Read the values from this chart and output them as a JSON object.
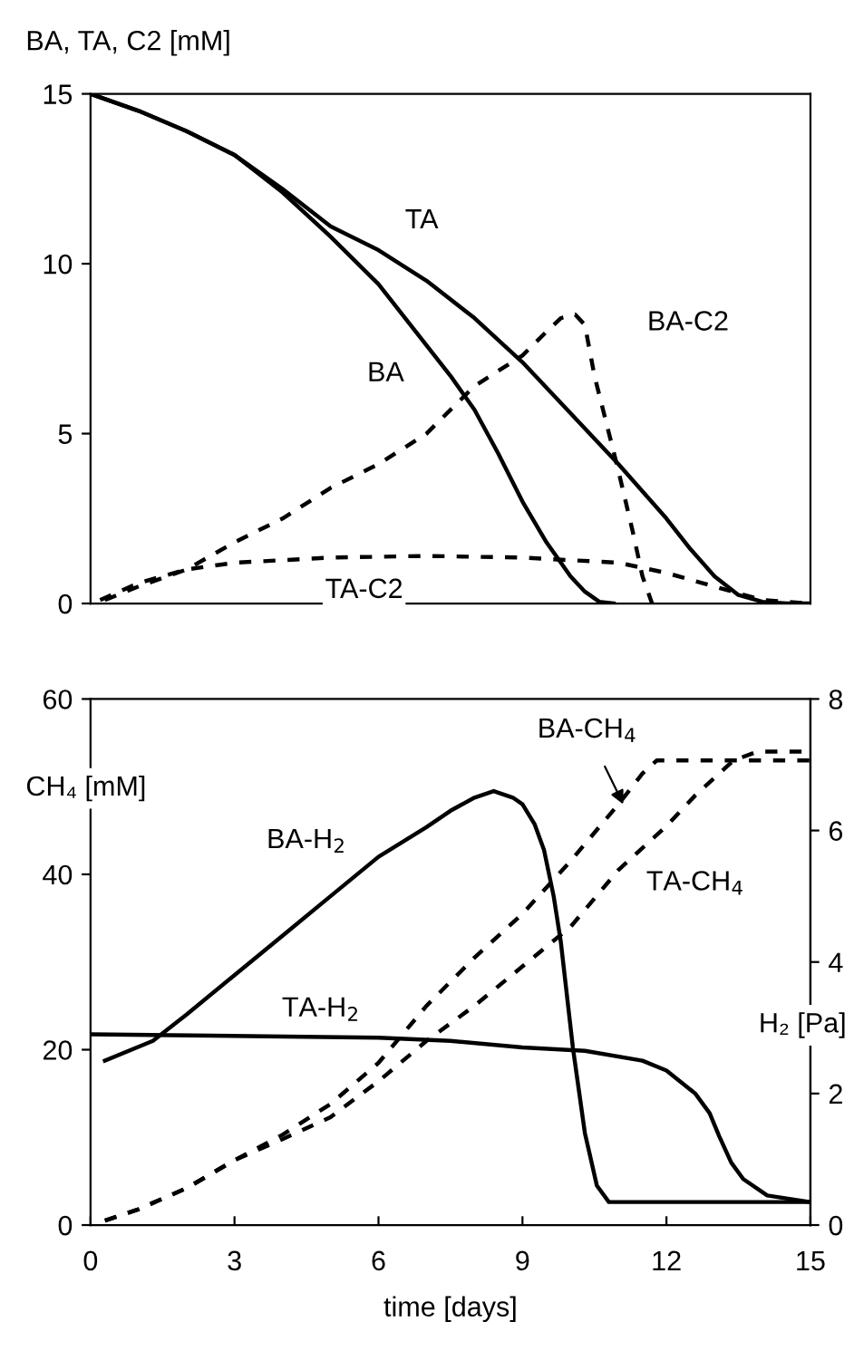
{
  "chart_data": [
    {
      "type": "line",
      "ylabel": "BA, TA, C2 [mM]",
      "xlim": [
        0,
        15
      ],
      "ylim": [
        0,
        15
      ],
      "yticks": [
        0,
        5,
        10,
        15
      ],
      "tick_labels": "y",
      "grid": false,
      "legend": false,
      "marker": "none",
      "series": [
        {
          "name": "BA",
          "color": "#000000",
          "line_style": "solid",
          "x": [
            0,
            1,
            2,
            3,
            4,
            5,
            6,
            7,
            7.5,
            8,
            8.5,
            9,
            9.5,
            10,
            10.3,
            10.6,
            10.9
          ],
          "values": [
            15,
            14.5,
            13.9,
            13.2,
            12.1,
            10.8,
            9.4,
            7.6,
            6.7,
            5.7,
            4.4,
            3.0,
            1.8,
            0.8,
            0.35,
            0.05,
            0
          ]
        },
        {
          "name": "TA",
          "color": "#000000",
          "line_style": "solid",
          "x": [
            0,
            1,
            2,
            3,
            4,
            5,
            6,
            7,
            8,
            9,
            10,
            11,
            12,
            12.5,
            13,
            13.5,
            14,
            14.5,
            15
          ],
          "values": [
            15,
            14.5,
            13.9,
            13.2,
            12.2,
            11.1,
            10.4,
            9.5,
            8.4,
            7.1,
            5.6,
            4.1,
            2.5,
            1.6,
            0.8,
            0.25,
            0.05,
            0,
            0
          ]
        },
        {
          "name": "BA-C2",
          "color": "#000000",
          "line_style": "dashed",
          "x": [
            0.3,
            1,
            2,
            3,
            4,
            5,
            6,
            7,
            8,
            9,
            9.5,
            9.8,
            10.1,
            10.3,
            10.5,
            11,
            11.3,
            11.5,
            11.7
          ],
          "values": [
            0.1,
            0.5,
            1.0,
            1.8,
            2.5,
            3.4,
            4.1,
            5.0,
            6.4,
            7.3,
            8.0,
            8.4,
            8.5,
            8.2,
            6.7,
            3.9,
            2.1,
            0.8,
            0
          ]
        },
        {
          "name": "TA-C2",
          "color": "#000000",
          "line_style": "dashed",
          "x": [
            0.2,
            1,
            2,
            3,
            5,
            7,
            9,
            11,
            12,
            13,
            14,
            15
          ],
          "values": [
            0.1,
            0.6,
            1.0,
            1.2,
            1.35,
            1.4,
            1.35,
            1.2,
            0.9,
            0.5,
            0.1,
            0
          ]
        }
      ]
    },
    {
      "type": "line",
      "xlabel": "time [days]",
      "ylabel": "CH₄ [mM]",
      "y2label": "H₂ [Pa]",
      "xlim": [
        0,
        15
      ],
      "xticks": [
        0,
        3,
        6,
        9,
        12,
        15
      ],
      "ylim": [
        0,
        60
      ],
      "yticks": [
        0,
        20,
        40,
        60
      ],
      "y2lim": [
        0,
        8
      ],
      "y2ticks": [
        0,
        2,
        4,
        6,
        8
      ],
      "grid": false,
      "legend": false,
      "marker": "none",
      "series": [
        {
          "name": "BA-H$_{2}$",
          "color": "#000000",
          "line_style": "solid",
          "axis": "y2",
          "x": [
            0.3,
            1.3,
            2,
            3,
            4,
            5,
            6,
            7,
            7.5,
            8,
            8.4,
            8.8,
            9,
            9.25,
            9.45,
            9.65,
            9.8,
            10.05,
            10.3,
            10.55,
            10.8,
            15
          ],
          "values": [
            2.5,
            2.8,
            3.2,
            3.8,
            4.4,
            5.0,
            5.6,
            6.05,
            6.3,
            6.5,
            6.6,
            6.5,
            6.4,
            6.1,
            5.7,
            5.0,
            4.3,
            2.7,
            1.4,
            0.6,
            0.35,
            0.35
          ]
        },
        {
          "name": "TA-H$_{2}$",
          "color": "#000000",
          "line_style": "solid",
          "axis": "y2",
          "x": [
            0,
            6,
            7.5,
            9,
            10.3,
            11.5,
            12,
            12.6,
            12.9,
            13.1,
            13.35,
            13.6,
            14.1,
            15
          ],
          "values": [
            2.9,
            2.85,
            2.8,
            2.7,
            2.65,
            2.5,
            2.35,
            2.0,
            1.7,
            1.35,
            0.95,
            0.7,
            0.45,
            0.35
          ]
        },
        {
          "name": "BA-CH$_{4}$",
          "color": "#000000",
          "line_style": "dashed",
          "x": [
            0.3,
            1,
            2,
            3,
            4,
            5,
            6,
            7,
            8,
            9,
            10,
            11,
            11.5,
            11.8,
            15
          ],
          "values": [
            0.5,
            1.8,
            4.2,
            7.4,
            10.3,
            13.8,
            18.5,
            25,
            30.5,
            35.5,
            41.5,
            48,
            51.5,
            53,
            53
          ]
        },
        {
          "name": "TA-CH$_{4}$",
          "color": "#000000",
          "line_style": "dashed",
          "x": [
            0.3,
            1,
            2,
            3,
            4,
            5,
            6,
            7,
            8,
            9,
            10,
            11,
            12,
            12.6,
            13.4,
            13.9,
            15
          ],
          "values": [
            0.5,
            1.8,
            4.2,
            7.4,
            9.8,
            12.3,
            16.4,
            21,
            25,
            29.5,
            34,
            40.5,
            45.5,
            49,
            53,
            54,
            54
          ]
        }
      ]
    }
  ]
}
